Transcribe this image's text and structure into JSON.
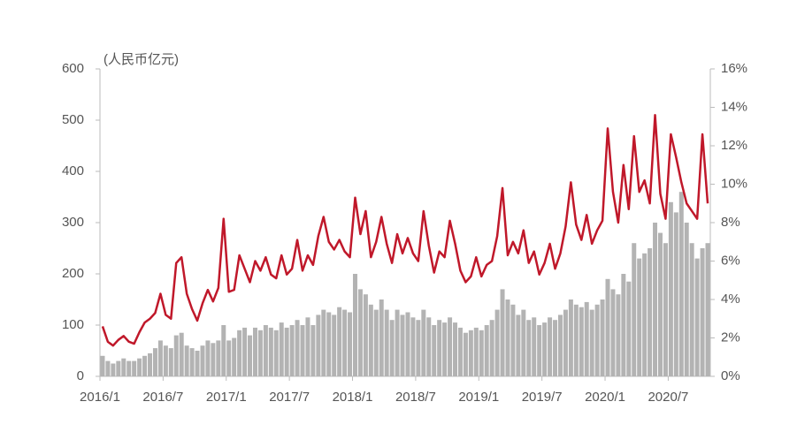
{
  "chart_data": {
    "type": "bar-line",
    "y_label": "(人民币亿元)",
    "categories": [
      "2016/1",
      null,
      null,
      null,
      null,
      null,
      null,
      null,
      null,
      null,
      null,
      null,
      "2016/7",
      null,
      null,
      null,
      null,
      null,
      null,
      null,
      null,
      null,
      null,
      null,
      "2017/1",
      null,
      null,
      null,
      null,
      null,
      null,
      null,
      null,
      null,
      null,
      null,
      "2017/7",
      null,
      null,
      null,
      null,
      null,
      null,
      null,
      null,
      null,
      null,
      null,
      "2018/1",
      null,
      null,
      null,
      null,
      null,
      null,
      null,
      null,
      null,
      null,
      null,
      "2018/7",
      null,
      null,
      null,
      null,
      null,
      null,
      null,
      null,
      null,
      null,
      null,
      "2019/1",
      null,
      null,
      null,
      null,
      null,
      null,
      null,
      null,
      null,
      null,
      null,
      "2019/7",
      null,
      null,
      null,
      null,
      null,
      null,
      null,
      null,
      null,
      null,
      null,
      "2020/1",
      null,
      null,
      null,
      null,
      null,
      null,
      null,
      null,
      null,
      null,
      null,
      "2020/7",
      null,
      null,
      null,
      null,
      null,
      null,
      null
    ],
    "series": [
      {
        "color": "#b3b3b3",
        "kind": "bar",
        "values": [
          40,
          30,
          25,
          30,
          35,
          30,
          30,
          35,
          40,
          45,
          55,
          70,
          60,
          55,
          80,
          85,
          60,
          55,
          50,
          60,
          70,
          65,
          70,
          100,
          70,
          75,
          90,
          95,
          80,
          95,
          90,
          100,
          95,
          90,
          105,
          95,
          100,
          110,
          100,
          115,
          100,
          120,
          130,
          125,
          120,
          135,
          130,
          125,
          200,
          170,
          160,
          140,
          130,
          150,
          130,
          110,
          130,
          120,
          125,
          115,
          110,
          130,
          115,
          100,
          110,
          105,
          115,
          105,
          95,
          85,
          90,
          95,
          90,
          100,
          110,
          130,
          170,
          150,
          140,
          120,
          130,
          110,
          115,
          100,
          105,
          115,
          110,
          120,
          130,
          150,
          140,
          135,
          145,
          130,
          140,
          150,
          190,
          170,
          160,
          200,
          185,
          260,
          230,
          240,
          250,
          300,
          280,
          260,
          340,
          320,
          360,
          300,
          260,
          230,
          250,
          260
        ]
      },
      {
        "color": "#c0182a",
        "kind": "line",
        "axis": "y2",
        "values": [
          2.6,
          1.8,
          1.6,
          1.9,
          2.1,
          1.8,
          1.7,
          2.3,
          2.8,
          3.0,
          3.3,
          4.3,
          3.2,
          3.0,
          5.9,
          6.2,
          4.3,
          3.5,
          2.9,
          3.8,
          4.5,
          3.9,
          4.6,
          8.2,
          4.4,
          4.5,
          6.3,
          5.6,
          4.9,
          6.0,
          5.5,
          6.2,
          5.3,
          5.1,
          6.3,
          5.3,
          5.6,
          7.1,
          5.5,
          6.3,
          5.8,
          7.3,
          8.3,
          7.0,
          6.6,
          7.1,
          6.5,
          6.2,
          9.3,
          7.4,
          8.6,
          6.2,
          7.0,
          8.3,
          6.9,
          5.9,
          7.4,
          6.4,
          7.2,
          6.4,
          6.0,
          8.6,
          6.8,
          5.4,
          6.5,
          6.2,
          8.1,
          6.9,
          5.5,
          4.9,
          5.2,
          6.2,
          5.2,
          5.8,
          6.0,
          7.3,
          9.8,
          6.3,
          7.0,
          6.4,
          7.6,
          5.9,
          6.5,
          5.3,
          5.9,
          6.9,
          5.6,
          6.4,
          7.8,
          10.1,
          7.9,
          7.1,
          8.4,
          6.9,
          7.6,
          8.1,
          12.9,
          9.6,
          8.0,
          11.0,
          8.7,
          12.5,
          9.6,
          10.2,
          9.0,
          13.6,
          9.5,
          8.2,
          12.6,
          11.4,
          10.1,
          9.0,
          8.6,
          8.2,
          12.6,
          9.0
        ]
      }
    ],
    "ylim": [
      0,
      600
    ],
    "yticks": [
      0,
      100,
      200,
      300,
      400,
      500,
      600
    ],
    "y2lim": [
      0,
      16
    ],
    "y2ticks": [
      {
        "value": 0,
        "label": "0%"
      },
      {
        "value": 2,
        "label": "2%"
      },
      {
        "value": 4,
        "label": "4%"
      },
      {
        "value": 6,
        "label": "6%"
      },
      {
        "value": 8,
        "label": "8%"
      },
      {
        "value": 10,
        "label": "10%"
      },
      {
        "value": 12,
        "label": "12%"
      },
      {
        "value": 14,
        "label": "14%"
      },
      {
        "value": 16,
        "label": "16%"
      }
    ]
  }
}
